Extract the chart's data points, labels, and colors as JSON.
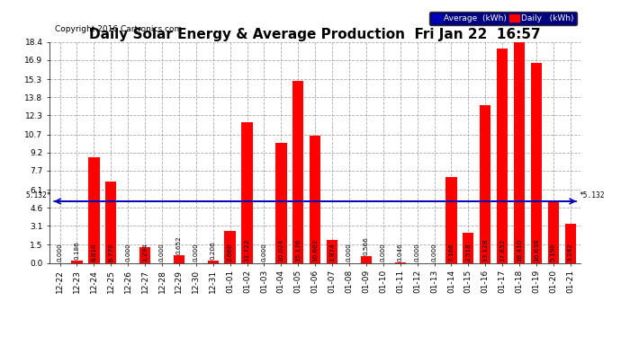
{
  "title": "Daily Solar Energy & Average Production  Fri Jan 22  16:57",
  "copyright": "Copyright 2016 Cartronics.com",
  "categories": [
    "12-22",
    "12-23",
    "12-24",
    "12-25",
    "12-26",
    "12-27",
    "12-28",
    "12-29",
    "12-30",
    "12-31",
    "01-01",
    "01-02",
    "01-03",
    "01-04",
    "01-05",
    "01-06",
    "01-07",
    "01-08",
    "01-09",
    "01-10",
    "01-11",
    "01-12",
    "01-13",
    "01-14",
    "01-15",
    "01-16",
    "01-17",
    "01-18",
    "01-19",
    "01-20",
    "01-21"
  ],
  "values": [
    0.0,
    0.186,
    8.81,
    6.77,
    0.0,
    1.294,
    0.0,
    0.652,
    0.0,
    0.206,
    2.66,
    11.722,
    0.0,
    10.024,
    15.176,
    10.602,
    1.874,
    0.0,
    0.566,
    0.0,
    0.046,
    0.0,
    0.0,
    7.166,
    2.518,
    13.128,
    17.852,
    18.41,
    16.638,
    5.19,
    3.242
  ],
  "average": 5.132,
  "bar_color": "#ff0000",
  "avg_line_color": "#0000bb",
  "bg_color": "#ffffff",
  "grid_color": "#aaaaaa",
  "ylim_max": 18.4,
  "yticks": [
    0.0,
    1.5,
    3.1,
    4.6,
    6.1,
    7.7,
    9.2,
    10.7,
    12.3,
    13.8,
    15.3,
    16.9,
    18.4
  ],
  "title_fontsize": 11,
  "copyright_fontsize": 6.5,
  "tick_fontsize": 6.5,
  "value_fontsize": 5.2
}
